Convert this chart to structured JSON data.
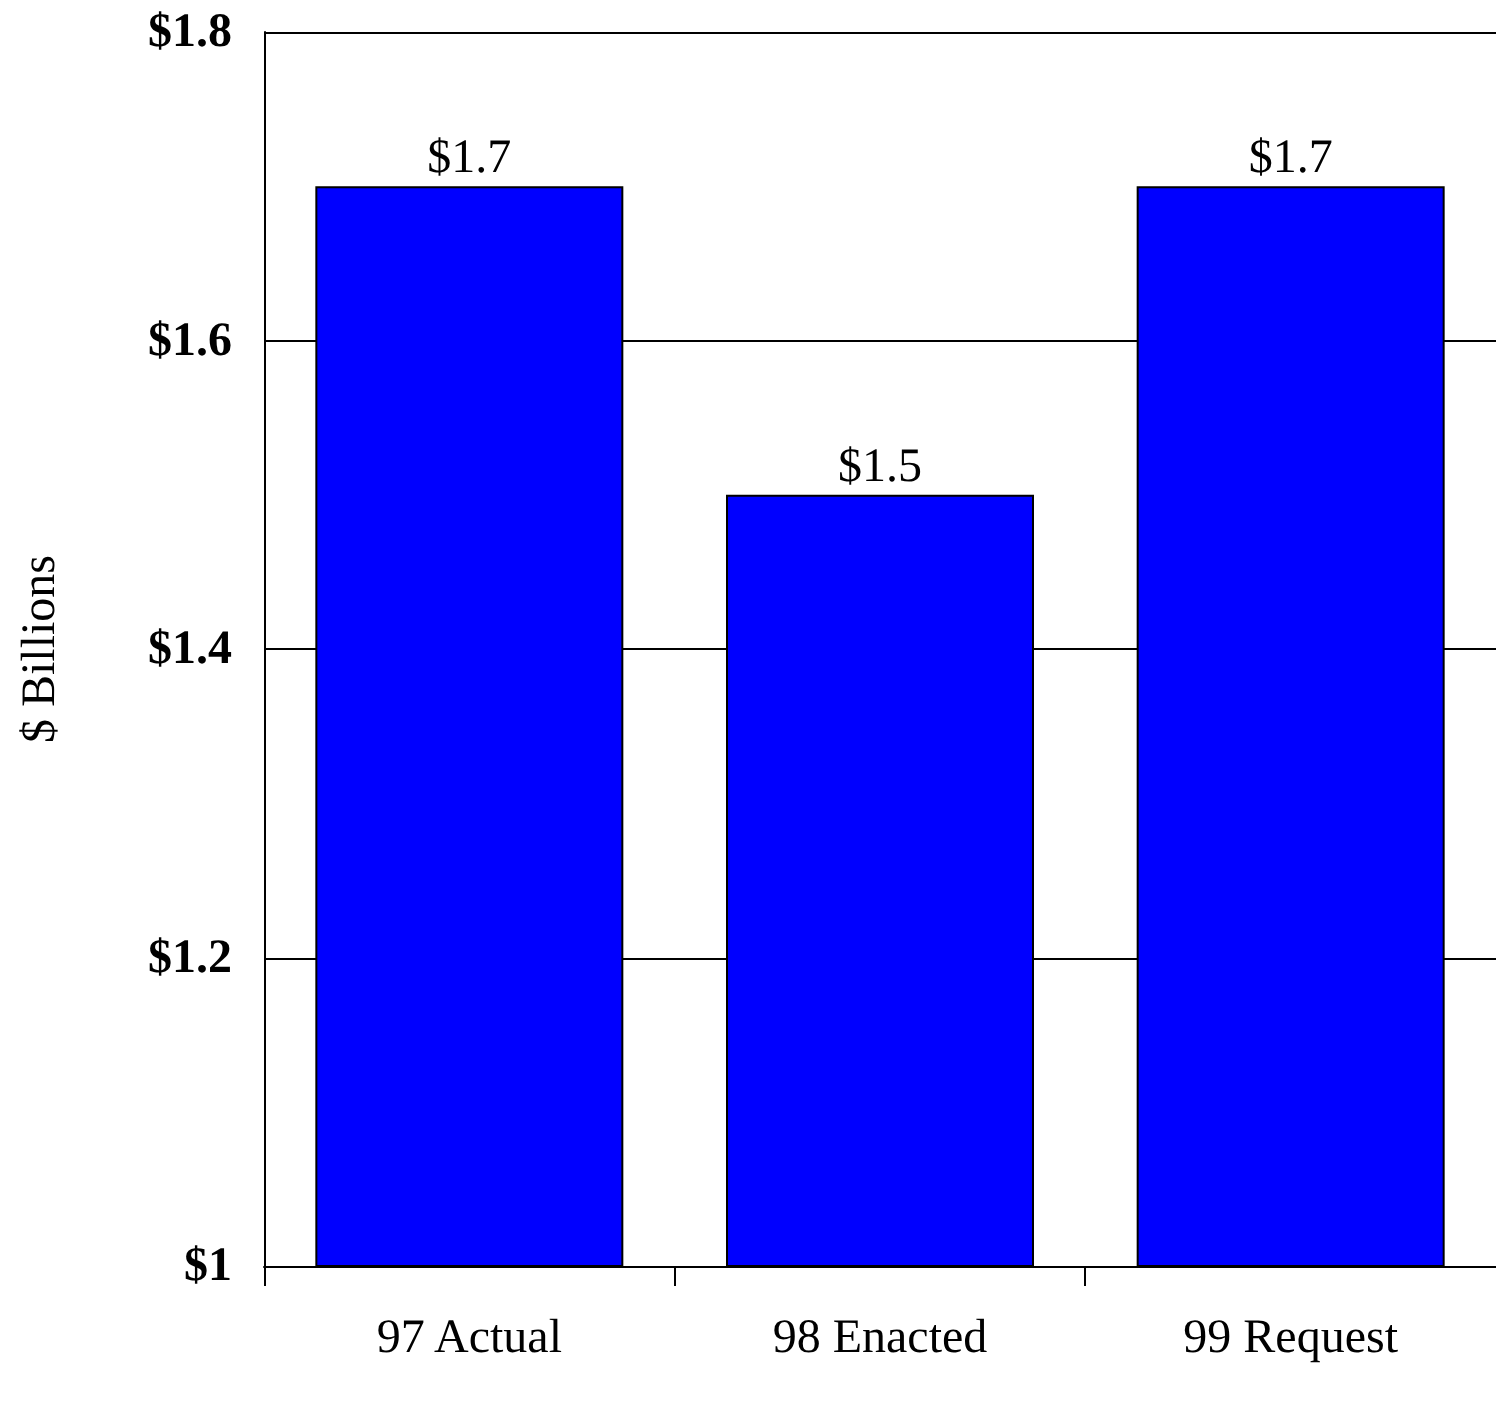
{
  "chart_data": {
    "type": "bar",
    "ylabel": "$ Billions",
    "categories": [
      "97 Actual",
      "98 Enacted",
      "99 Request"
    ],
    "values": [
      1.7,
      1.5,
      1.7
    ],
    "color": "#0000ff",
    "value_labels": [
      "$1.7",
      "$1.5",
      "$1.7"
    ],
    "ylim": [
      1,
      1.8
    ],
    "yticks": [
      {
        "value": 1,
        "label": "$1"
      },
      {
        "value": 1.2,
        "label": "$1.2"
      },
      {
        "value": 1.4,
        "label": "$1.4"
      },
      {
        "value": 1.6,
        "label": "$1.6"
      },
      {
        "value": 1.8,
        "label": "$1.8"
      }
    ],
    "grid": "y"
  }
}
